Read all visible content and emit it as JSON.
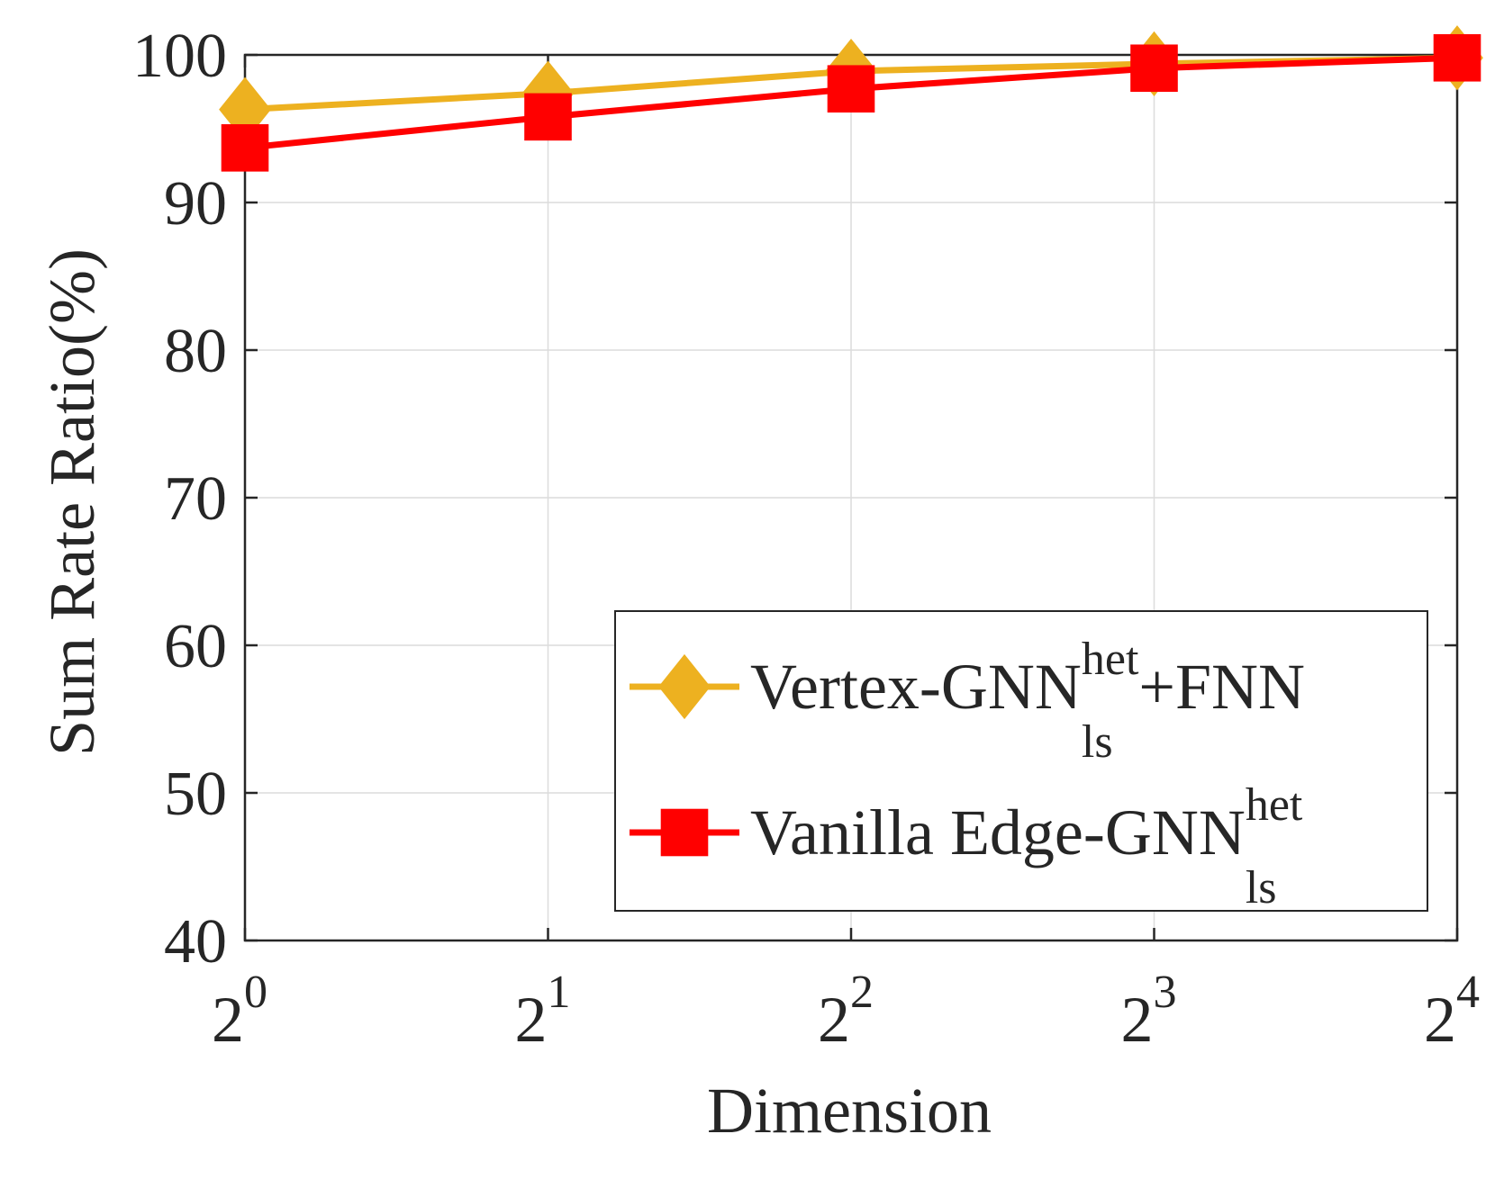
{
  "chart_data": {
    "type": "line",
    "x_scale": "log2",
    "x": [
      1,
      2,
      4,
      8,
      16
    ],
    "x_tick_labels": [
      {
        "base": "2",
        "exp": "0"
      },
      {
        "base": "2",
        "exp": "1"
      },
      {
        "base": "2",
        "exp": "2"
      },
      {
        "base": "2",
        "exp": "3"
      },
      {
        "base": "2",
        "exp": "4"
      }
    ],
    "y_ticks": [
      40,
      50,
      60,
      70,
      80,
      90,
      100
    ],
    "ylim": [
      40,
      100
    ],
    "xlabel": "Dimension",
    "ylabel": "Sum Rate Ratio(%)",
    "grid": true,
    "legend_position": "bottom-right",
    "series": [
      {
        "name": "Vertex-GNN",
        "name_sup": "het",
        "name_sub": "ls",
        "name_suffix": "+FNN",
        "marker": "diamond",
        "color": "#EDB120",
        "values": [
          96.3,
          97.4,
          98.9,
          99.4,
          99.8
        ]
      },
      {
        "name": "Vanilla Edge-GNN",
        "name_sup": "het",
        "name_sub": "ls",
        "name_suffix": "",
        "marker": "square",
        "color": "#FF0000",
        "values": [
          93.7,
          95.8,
          97.7,
          99.1,
          99.8
        ]
      }
    ]
  }
}
